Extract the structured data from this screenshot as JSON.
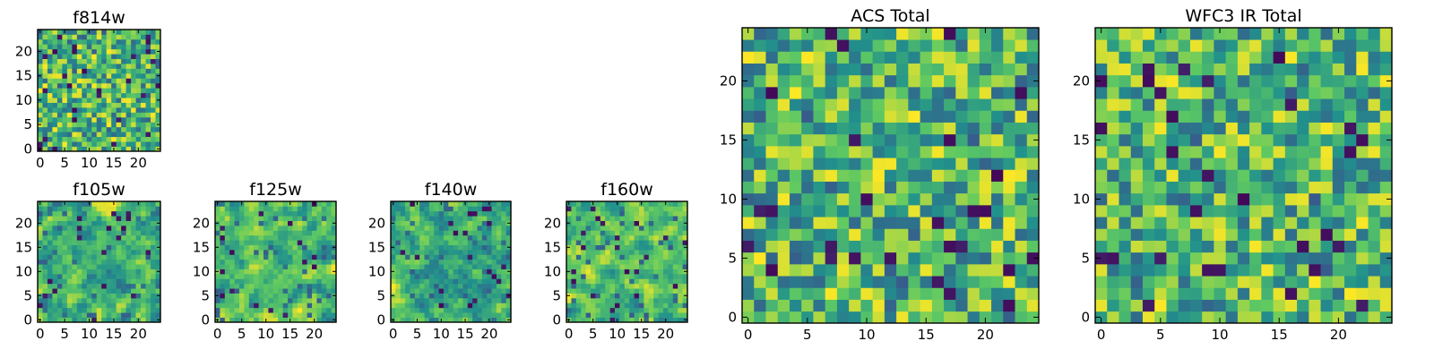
{
  "colormap": {
    "name": "viridis",
    "stops": [
      "#440154",
      "#3b528b",
      "#21918c",
      "#5ec962",
      "#fde725"
    ]
  },
  "chart_data": [
    {
      "type": "heatmap",
      "title": "f814w",
      "colormap": "viridis",
      "grid_size": [
        25,
        25
      ],
      "xlim": [
        0,
        24
      ],
      "ylim": [
        0,
        24
      ],
      "xticks": [
        0,
        5,
        10,
        15,
        20
      ],
      "yticks": [
        0,
        5,
        10,
        15,
        20
      ],
      "value_range": [
        0,
        1
      ],
      "seed": 11,
      "smoothing": 0
    },
    {
      "type": "heatmap",
      "title": "f105w",
      "colormap": "viridis",
      "grid_size": [
        25,
        25
      ],
      "xlim": [
        0,
        24
      ],
      "ylim": [
        0,
        24
      ],
      "xticks": [
        0,
        5,
        10,
        15,
        20
      ],
      "yticks": [
        0,
        5,
        10,
        15,
        20
      ],
      "value_range": [
        0,
        1
      ],
      "seed": 23,
      "smoothing": 1
    },
    {
      "type": "heatmap",
      "title": "f125w",
      "colormap": "viridis",
      "grid_size": [
        25,
        25
      ],
      "xlim": [
        0,
        24
      ],
      "ylim": [
        0,
        24
      ],
      "xticks": [
        0,
        5,
        10,
        15,
        20
      ],
      "yticks": [
        0,
        5,
        10,
        15,
        20
      ],
      "value_range": [
        0,
        1
      ],
      "seed": 37,
      "smoothing": 1
    },
    {
      "type": "heatmap",
      "title": "f140w",
      "colormap": "viridis",
      "grid_size": [
        25,
        25
      ],
      "xlim": [
        0,
        24
      ],
      "ylim": [
        0,
        24
      ],
      "xticks": [
        0,
        5,
        10,
        15,
        20
      ],
      "yticks": [
        0,
        5,
        10,
        15,
        20
      ],
      "value_range": [
        0,
        1
      ],
      "seed": 41,
      "smoothing": 1
    },
    {
      "type": "heatmap",
      "title": "f160w",
      "colormap": "viridis",
      "grid_size": [
        25,
        25
      ],
      "xlim": [
        0,
        24
      ],
      "ylim": [
        0,
        24
      ],
      "xticks": [
        0,
        5,
        10,
        15,
        20
      ],
      "yticks": [
        0,
        5,
        10,
        15,
        20
      ],
      "value_range": [
        0,
        1
      ],
      "seed": 53,
      "smoothing": 1
    },
    {
      "type": "heatmap",
      "title": "ACS Total",
      "colormap": "viridis",
      "grid_size": [
        25,
        25
      ],
      "xlim": [
        0,
        24
      ],
      "ylim": [
        0,
        24
      ],
      "xticks": [
        0,
        5,
        10,
        15,
        20
      ],
      "yticks": [
        0,
        5,
        10,
        15,
        20
      ],
      "value_range": [
        0,
        1
      ],
      "seed": 67,
      "smoothing": 0
    },
    {
      "type": "heatmap",
      "title": "WFC3 IR Total",
      "colormap": "viridis",
      "grid_size": [
        25,
        25
      ],
      "xlim": [
        0,
        24
      ],
      "ylim": [
        0,
        24
      ],
      "xticks": [
        0,
        5,
        10,
        15,
        20
      ],
      "yticks": [
        0,
        5,
        10,
        15,
        20
      ],
      "value_range": [
        0,
        1
      ],
      "seed": 79,
      "smoothing": 0
    }
  ]
}
